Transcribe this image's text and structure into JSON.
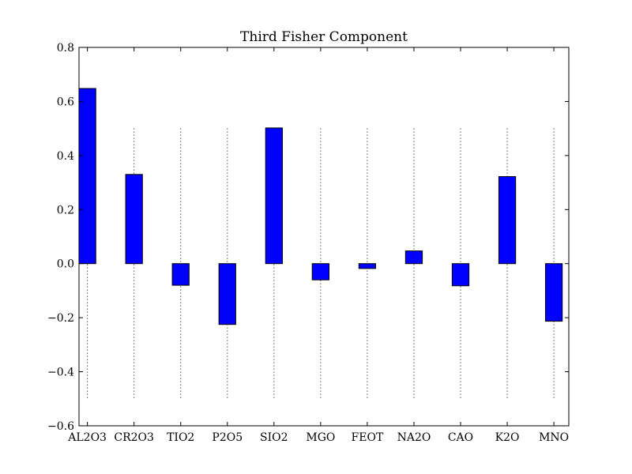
{
  "chart_data": {
    "type": "bar",
    "title": "Third Fisher Component",
    "xlabel": "",
    "ylabel": "",
    "categories": [
      "AL2O3",
      "CR2O3",
      "TIO2",
      "P2O5",
      "SIO2",
      "MGO",
      "FEOT",
      "NA2O",
      "CAO",
      "K2O",
      "MNO"
    ],
    "values": [
      0.648,
      0.33,
      -0.08,
      -0.225,
      0.502,
      -0.06,
      -0.018,
      0.047,
      -0.082,
      0.322,
      -0.213
    ],
    "ylim": [
      -0.6,
      0.8
    ],
    "yticks": [
      -0.6,
      -0.4,
      -0.2,
      0.0,
      0.2,
      0.4,
      0.6,
      0.8
    ],
    "ytick_labels": [
      "−0.6",
      "−0.4",
      "−0.2",
      "0.0",
      "0.2",
      "0.4",
      "0.6",
      "0.8"
    ],
    "reference_lines": {
      "style": "dotted",
      "from": -0.5,
      "to": 0.5
    },
    "bar_color": "#0000ff",
    "grid": false,
    "legend": "none"
  }
}
